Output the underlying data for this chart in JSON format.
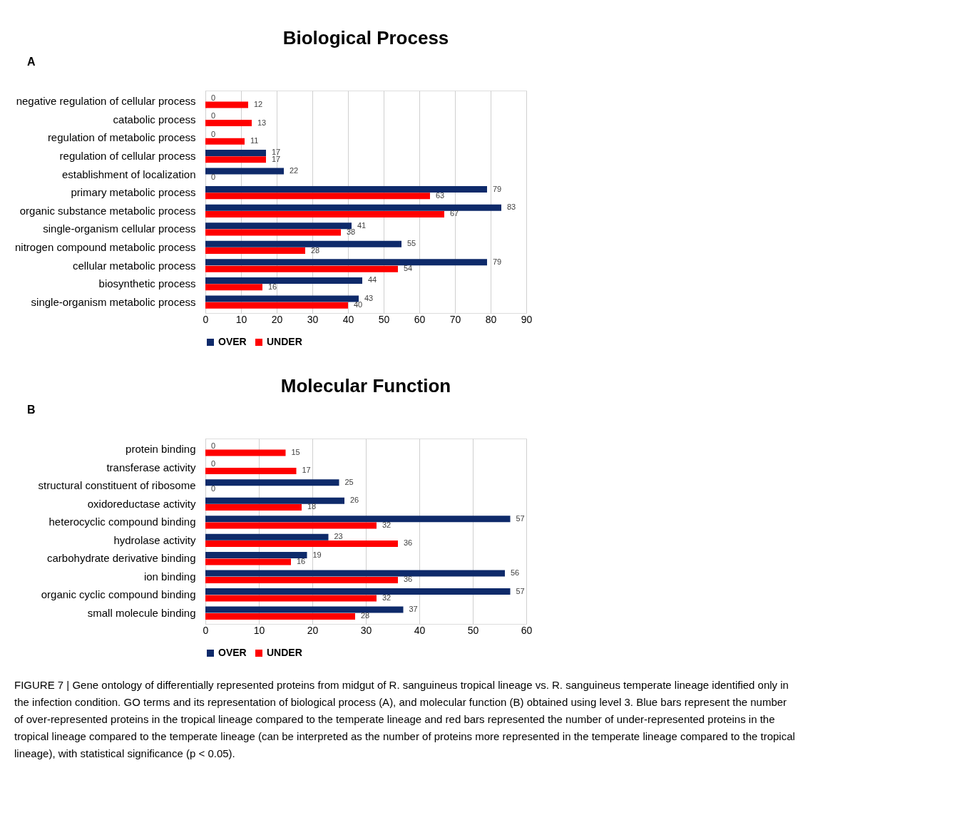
{
  "chart_data": [
    {
      "type": "bar",
      "orientation": "horizontal",
      "title": "Biological Process",
      "annotations": [
        "A"
      ],
      "categories": [
        "negative regulation of cellular process",
        "catabolic process",
        "regulation of metabolic process",
        "regulation of cellular process",
        "establishment of localization",
        "primary metabolic process",
        "organic substance metabolic process",
        "single-organism cellular process",
        "nitrogen compound metabolic process",
        "cellular metabolic process",
        "biosynthetic process",
        "single-organism metabolic process"
      ],
      "series": [
        {
          "name": "OVER",
          "color": "#0e2a6a",
          "values": [
            0,
            0,
            0,
            17,
            22,
            79,
            83,
            41,
            55,
            79,
            44,
            43
          ]
        },
        {
          "name": "UNDER",
          "color": "#ff0000",
          "values": [
            12,
            13,
            11,
            17,
            0,
            63,
            67,
            38,
            28,
            54,
            16,
            40
          ]
        }
      ],
      "xlim": [
        0,
        90
      ],
      "xticks": [
        0,
        10,
        20,
        30,
        40,
        50,
        60,
        70,
        80,
        90
      ],
      "grid": "x",
      "legend": "bottom",
      "data_labels": true
    },
    {
      "type": "bar",
      "orientation": "horizontal",
      "title": "Molecular Function",
      "annotations": [
        "B",
        "FIGURE 7 | Gene ontology of differentially represented proteins from midgut of R. sanguineus tropical lineage vs. R. sanguineus temperate lineage identified only in the infection condition. GO terms and its representation of biological process (A), and molecular function (B) obtained using level 3. Blue bars represent the number of over-represented proteins in the tropical lineage compared to the temperate lineage and red bars represented the number of under-represented proteins in the tropical lineage compared to the temperate lineage (can be interpreted as the number of proteins more represented in the temperate lineage compared to the tropical lineage), with statistical significance (p < 0.05)."
      ],
      "categories": [
        "protein binding",
        "transferase activity",
        "structural constituent of ribosome",
        "oxidoreductase activity",
        "heterocyclic compound binding",
        "hydrolase activity",
        "carbohydrate derivative binding",
        "ion binding",
        "organic cyclic compound binding",
        "small molecule binding"
      ],
      "series": [
        {
          "name": "OVER",
          "color": "#0e2a6a",
          "values": [
            0,
            0,
            25,
            26,
            57,
            23,
            19,
            56,
            57,
            37
          ]
        },
        {
          "name": "UNDER",
          "color": "#ff0000",
          "values": [
            15,
            17,
            0,
            18,
            32,
            36,
            16,
            36,
            32,
            28
          ]
        }
      ],
      "xlim": [
        0,
        60
      ],
      "xticks": [
        0,
        10,
        20,
        30,
        40,
        50,
        60
      ],
      "grid": "x",
      "legend": "bottom",
      "data_labels": true
    }
  ]
}
